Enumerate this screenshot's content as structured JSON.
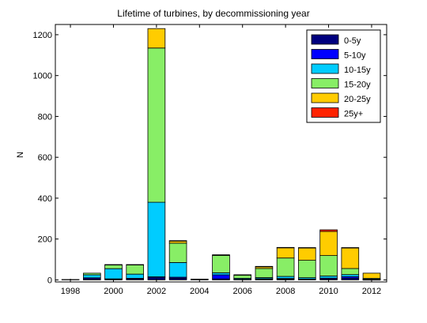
{
  "chart_data": {
    "type": "bar",
    "stacked": true,
    "title": "Lifetime of turbines, by decommissioning year",
    "xlabel": "",
    "ylabel": "N",
    "xlim": [
      1997.3,
      2012.7
    ],
    "ylim": [
      -10,
      1250
    ],
    "x_ticks": [
      1998,
      2000,
      2002,
      2004,
      2006,
      2008,
      2010,
      2012
    ],
    "y_ticks": [
      0,
      200,
      400,
      600,
      800,
      1000,
      1200
    ],
    "grid": false,
    "legend_position": "top-right",
    "x": [
      1998,
      1999,
      2000,
      2001,
      2002,
      2003,
      2004,
      2005,
      2006,
      2007,
      2008,
      2009,
      2010,
      2011,
      2012
    ],
    "series": [
      {
        "name": "0-5y",
        "color": "#00007f",
        "values": [
          2,
          5,
          3,
          5,
          10,
          8,
          3,
          5,
          2,
          4,
          4,
          3,
          5,
          8,
          1
        ]
      },
      {
        "name": "5-10y",
        "color": "#0000ff",
        "values": [
          0,
          5,
          2,
          3,
          5,
          5,
          1,
          20,
          1,
          2,
          3,
          2,
          4,
          8,
          1
        ]
      },
      {
        "name": "10-15y",
        "color": "#00ccff",
        "values": [
          0,
          15,
          50,
          20,
          365,
          72,
          0,
          10,
          5,
          5,
          10,
          6,
          10,
          10,
          1
        ]
      },
      {
        "name": "15-20y",
        "color": "#88ee66",
        "values": [
          0,
          8,
          18,
          45,
          755,
          95,
          0,
          85,
          15,
          45,
          90,
          85,
          100,
          30,
          5
        ]
      },
      {
        "name": "20-25y",
        "color": "#ffcc00",
        "values": [
          0,
          0,
          2,
          2,
          95,
          10,
          0,
          3,
          2,
          8,
          50,
          60,
          118,
          100,
          25
        ]
      },
      {
        "name": "25y+",
        "color": "#ff2200",
        "values": [
          0,
          0,
          0,
          0,
          0,
          2,
          0,
          0,
          0,
          2,
          2,
          2,
          8,
          2,
          0
        ]
      }
    ]
  }
}
